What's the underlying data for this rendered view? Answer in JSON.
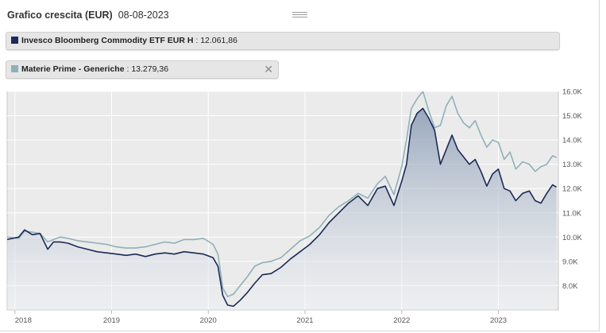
{
  "header": {
    "title": "Grafico crescita (EUR)",
    "date": "08-08-2023"
  },
  "icons": {
    "menu": "hamburger-menu-icon",
    "close": "close-icon"
  },
  "legend": [
    {
      "name": "Invesco Bloomberg Commodity ETF EUR H",
      "value": ": 12.061,86",
      "color": "#1c2a57"
    },
    {
      "name": "Materie Prime - Generiche",
      "value": ": 13.279,36",
      "color": "#8fb0b8",
      "close_label": "✕"
    }
  ],
  "chart_data": {
    "type": "line",
    "title": "Grafico crescita (EUR)",
    "xlabel": "",
    "ylabel": "",
    "y_axis_side": "right",
    "grid": true,
    "ylim": [
      7000,
      16000
    ],
    "xlim": [
      2017.92,
      2023.62
    ],
    "x_tick_labels": [
      "2018",
      "2019",
      "2020",
      "2021",
      "2022",
      "2023"
    ],
    "x_ticks": [
      2018,
      2019,
      2020,
      2021,
      2022,
      2023
    ],
    "y_tick_labels": [
      "8.0K",
      "9.0K",
      "10.0K",
      "11.0K",
      "12.0K",
      "13.0K",
      "14.0K",
      "15.0K",
      "16.0K"
    ],
    "y_ticks": [
      8000,
      9000,
      10000,
      11000,
      12000,
      13000,
      14000,
      15000,
      16000
    ],
    "series": [
      {
        "name": "Invesco Bloomberg Commodity ETF EUR H",
        "color": "#1c2a57",
        "fill": true,
        "x": [
          2017.92,
          2018.04,
          2018.1,
          2018.18,
          2018.26,
          2018.34,
          2018.4,
          2018.47,
          2018.55,
          2018.65,
          2018.75,
          2018.85,
          2018.95,
          2019.05,
          2019.15,
          2019.25,
          2019.35,
          2019.45,
          2019.55,
          2019.65,
          2019.75,
          2019.85,
          2019.95,
          2020.05,
          2020.1,
          2020.15,
          2020.2,
          2020.26,
          2020.33,
          2020.4,
          2020.48,
          2020.56,
          2020.65,
          2020.75,
          2020.85,
          2020.95,
          2021.05,
          2021.15,
          2021.25,
          2021.35,
          2021.45,
          2021.55,
          2021.65,
          2021.75,
          2021.83,
          2021.92,
          2022.0,
          2022.05,
          2022.1,
          2022.16,
          2022.22,
          2022.28,
          2022.34,
          2022.4,
          2022.46,
          2022.52,
          2022.58,
          2022.64,
          2022.7,
          2022.76,
          2022.82,
          2022.88,
          2022.94,
          2023.0,
          2023.06,
          2023.12,
          2023.18,
          2023.25,
          2023.32,
          2023.38,
          2023.44,
          2023.5,
          2023.56,
          2023.6
        ],
        "y": [
          9900,
          10000,
          10300,
          10100,
          10150,
          9500,
          9800,
          9800,
          9750,
          9600,
          9500,
          9400,
          9350,
          9300,
          9250,
          9300,
          9200,
          9300,
          9350,
          9300,
          9400,
          9350,
          9300,
          9150,
          8800,
          7600,
          7200,
          7150,
          7400,
          7700,
          8100,
          8450,
          8500,
          8750,
          9100,
          9400,
          9700,
          10100,
          10600,
          11000,
          11400,
          11700,
          11300,
          12000,
          12100,
          11300,
          12300,
          13000,
          14600,
          15100,
          15300,
          14900,
          14400,
          13000,
          13600,
          14200,
          13600,
          13300,
          13000,
          13200,
          12700,
          12100,
          12600,
          12800,
          12000,
          11900,
          11500,
          11800,
          11900,
          11500,
          11400,
          11800,
          12150,
          12060
        ]
      },
      {
        "name": "Materie Prime - Generiche",
        "color": "#8fb0b8",
        "fill": false,
        "x": [
          2017.92,
          2018.04,
          2018.1,
          2018.18,
          2018.26,
          2018.34,
          2018.4,
          2018.47,
          2018.55,
          2018.65,
          2018.75,
          2018.85,
          2018.95,
          2019.05,
          2019.15,
          2019.25,
          2019.35,
          2019.45,
          2019.55,
          2019.65,
          2019.75,
          2019.85,
          2019.95,
          2020.05,
          2020.1,
          2020.15,
          2020.2,
          2020.26,
          2020.33,
          2020.4,
          2020.48,
          2020.56,
          2020.65,
          2020.75,
          2020.85,
          2020.95,
          2021.05,
          2021.15,
          2021.25,
          2021.35,
          2021.45,
          2021.55,
          2021.65,
          2021.75,
          2021.83,
          2021.92,
          2022.0,
          2022.05,
          2022.1,
          2022.16,
          2022.22,
          2022.28,
          2022.34,
          2022.4,
          2022.46,
          2022.52,
          2022.58,
          2022.64,
          2022.7,
          2022.76,
          2022.82,
          2022.88,
          2022.94,
          2023.0,
          2023.06,
          2023.12,
          2023.18,
          2023.25,
          2023.32,
          2023.38,
          2023.44,
          2023.5,
          2023.56,
          2023.6
        ],
        "y": [
          10000,
          9950,
          10250,
          10200,
          10150,
          9800,
          9900,
          10000,
          9950,
          9850,
          9800,
          9750,
          9700,
          9600,
          9550,
          9550,
          9600,
          9700,
          9800,
          9750,
          9900,
          9900,
          9950,
          9700,
          9300,
          7900,
          7550,
          7650,
          8000,
          8350,
          8800,
          8950,
          9000,
          9150,
          9500,
          9850,
          10050,
          10400,
          10900,
          11250,
          11500,
          11800,
          11600,
          12200,
          12500,
          11750,
          12900,
          14000,
          15300,
          15700,
          16000,
          15200,
          14500,
          14600,
          15400,
          15800,
          15100,
          14700,
          14500,
          14800,
          14200,
          13700,
          14000,
          13900,
          13200,
          13500,
          12800,
          13100,
          13000,
          12700,
          12900,
          13000,
          13350,
          13280
        ]
      }
    ]
  }
}
